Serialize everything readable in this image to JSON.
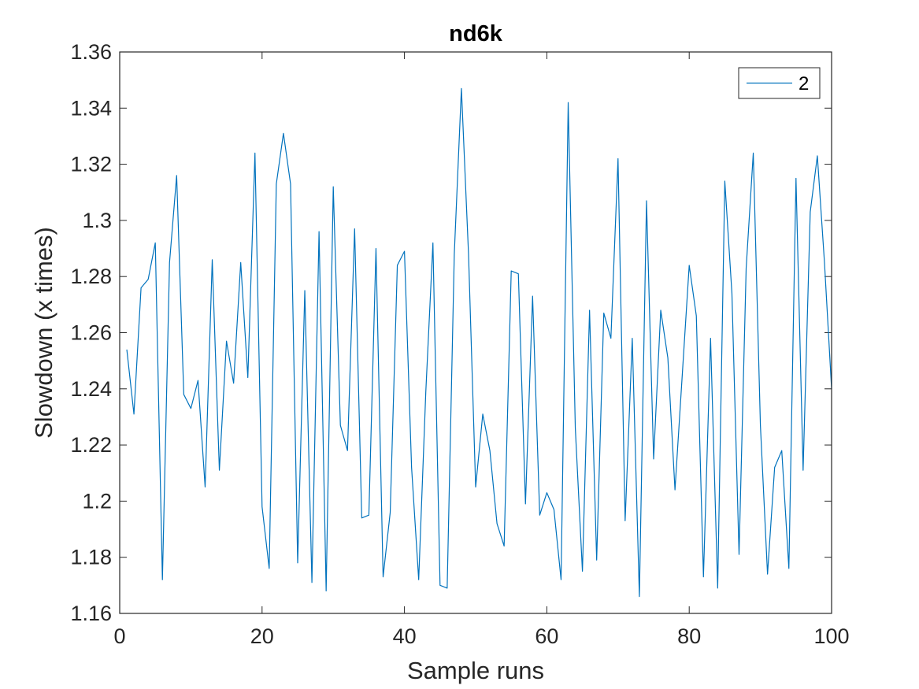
{
  "chart_data": {
    "type": "line",
    "title": "nd6k",
    "xlabel": "Sample runs",
    "ylabel": "Slowdown (x times)",
    "xlim": [
      0,
      100
    ],
    "ylim": [
      1.16,
      1.36
    ],
    "xticks": [
      0,
      20,
      40,
      60,
      80,
      100
    ],
    "xtick_labels": [
      "0",
      "20",
      "40",
      "60",
      "80",
      "100"
    ],
    "yticks": [
      1.16,
      1.18,
      1.2,
      1.22,
      1.24,
      1.26,
      1.28,
      1.3,
      1.32,
      1.34,
      1.36
    ],
    "ytick_labels": [
      "1.16",
      "1.18",
      "1.2",
      "1.22",
      "1.24",
      "1.26",
      "1.28",
      "1.3",
      "1.32",
      "1.34",
      "1.36"
    ],
    "grid": false,
    "box": true,
    "legend": {
      "position": "top-right",
      "entries": [
        "2"
      ]
    },
    "series": [
      {
        "name": "2",
        "color": "#0072BD",
        "x": [
          1,
          2,
          3,
          4,
          5,
          6,
          7,
          8,
          9,
          10,
          11,
          12,
          13,
          14,
          15,
          16,
          17,
          18,
          19,
          20,
          21,
          22,
          23,
          24,
          25,
          26,
          27,
          28,
          29,
          30,
          31,
          32,
          33,
          34,
          35,
          36,
          37,
          38,
          39,
          40,
          41,
          42,
          43,
          44,
          45,
          46,
          47,
          48,
          49,
          50,
          51,
          52,
          53,
          54,
          55,
          56,
          57,
          58,
          59,
          60,
          61,
          62,
          63,
          64,
          65,
          66,
          67,
          68,
          69,
          70,
          71,
          72,
          73,
          74,
          75,
          76,
          77,
          78,
          79,
          80,
          81,
          82,
          83,
          84,
          85,
          86,
          87,
          88,
          89,
          90,
          91,
          92,
          93,
          94,
          95,
          96,
          97,
          98,
          99,
          100
        ],
        "values": [
          1.254,
          1.231,
          1.276,
          1.279,
          1.292,
          1.172,
          1.285,
          1.316,
          1.238,
          1.233,
          1.243,
          1.205,
          1.286,
          1.211,
          1.257,
          1.242,
          1.285,
          1.244,
          1.324,
          1.198,
          1.176,
          1.313,
          1.331,
          1.313,
          1.178,
          1.275,
          1.171,
          1.296,
          1.168,
          1.312,
          1.227,
          1.218,
          1.297,
          1.194,
          1.195,
          1.29,
          1.173,
          1.196,
          1.284,
          1.289,
          1.212,
          1.172,
          1.239,
          1.292,
          1.17,
          1.169,
          1.288,
          1.347,
          1.288,
          1.205,
          1.231,
          1.218,
          1.192,
          1.184,
          1.282,
          1.281,
          1.199,
          1.273,
          1.195,
          1.203,
          1.197,
          1.172,
          1.342,
          1.226,
          1.175,
          1.268,
          1.179,
          1.267,
          1.258,
          1.322,
          1.193,
          1.258,
          1.166,
          1.307,
          1.215,
          1.268,
          1.251,
          1.204,
          1.244,
          1.284,
          1.266,
          1.173,
          1.258,
          1.169,
          1.314,
          1.274,
          1.181,
          1.283,
          1.324,
          1.227,
          1.174,
          1.212,
          1.218,
          1.176,
          1.315,
          1.211,
          1.303,
          1.323,
          1.285,
          1.24
        ]
      }
    ]
  }
}
